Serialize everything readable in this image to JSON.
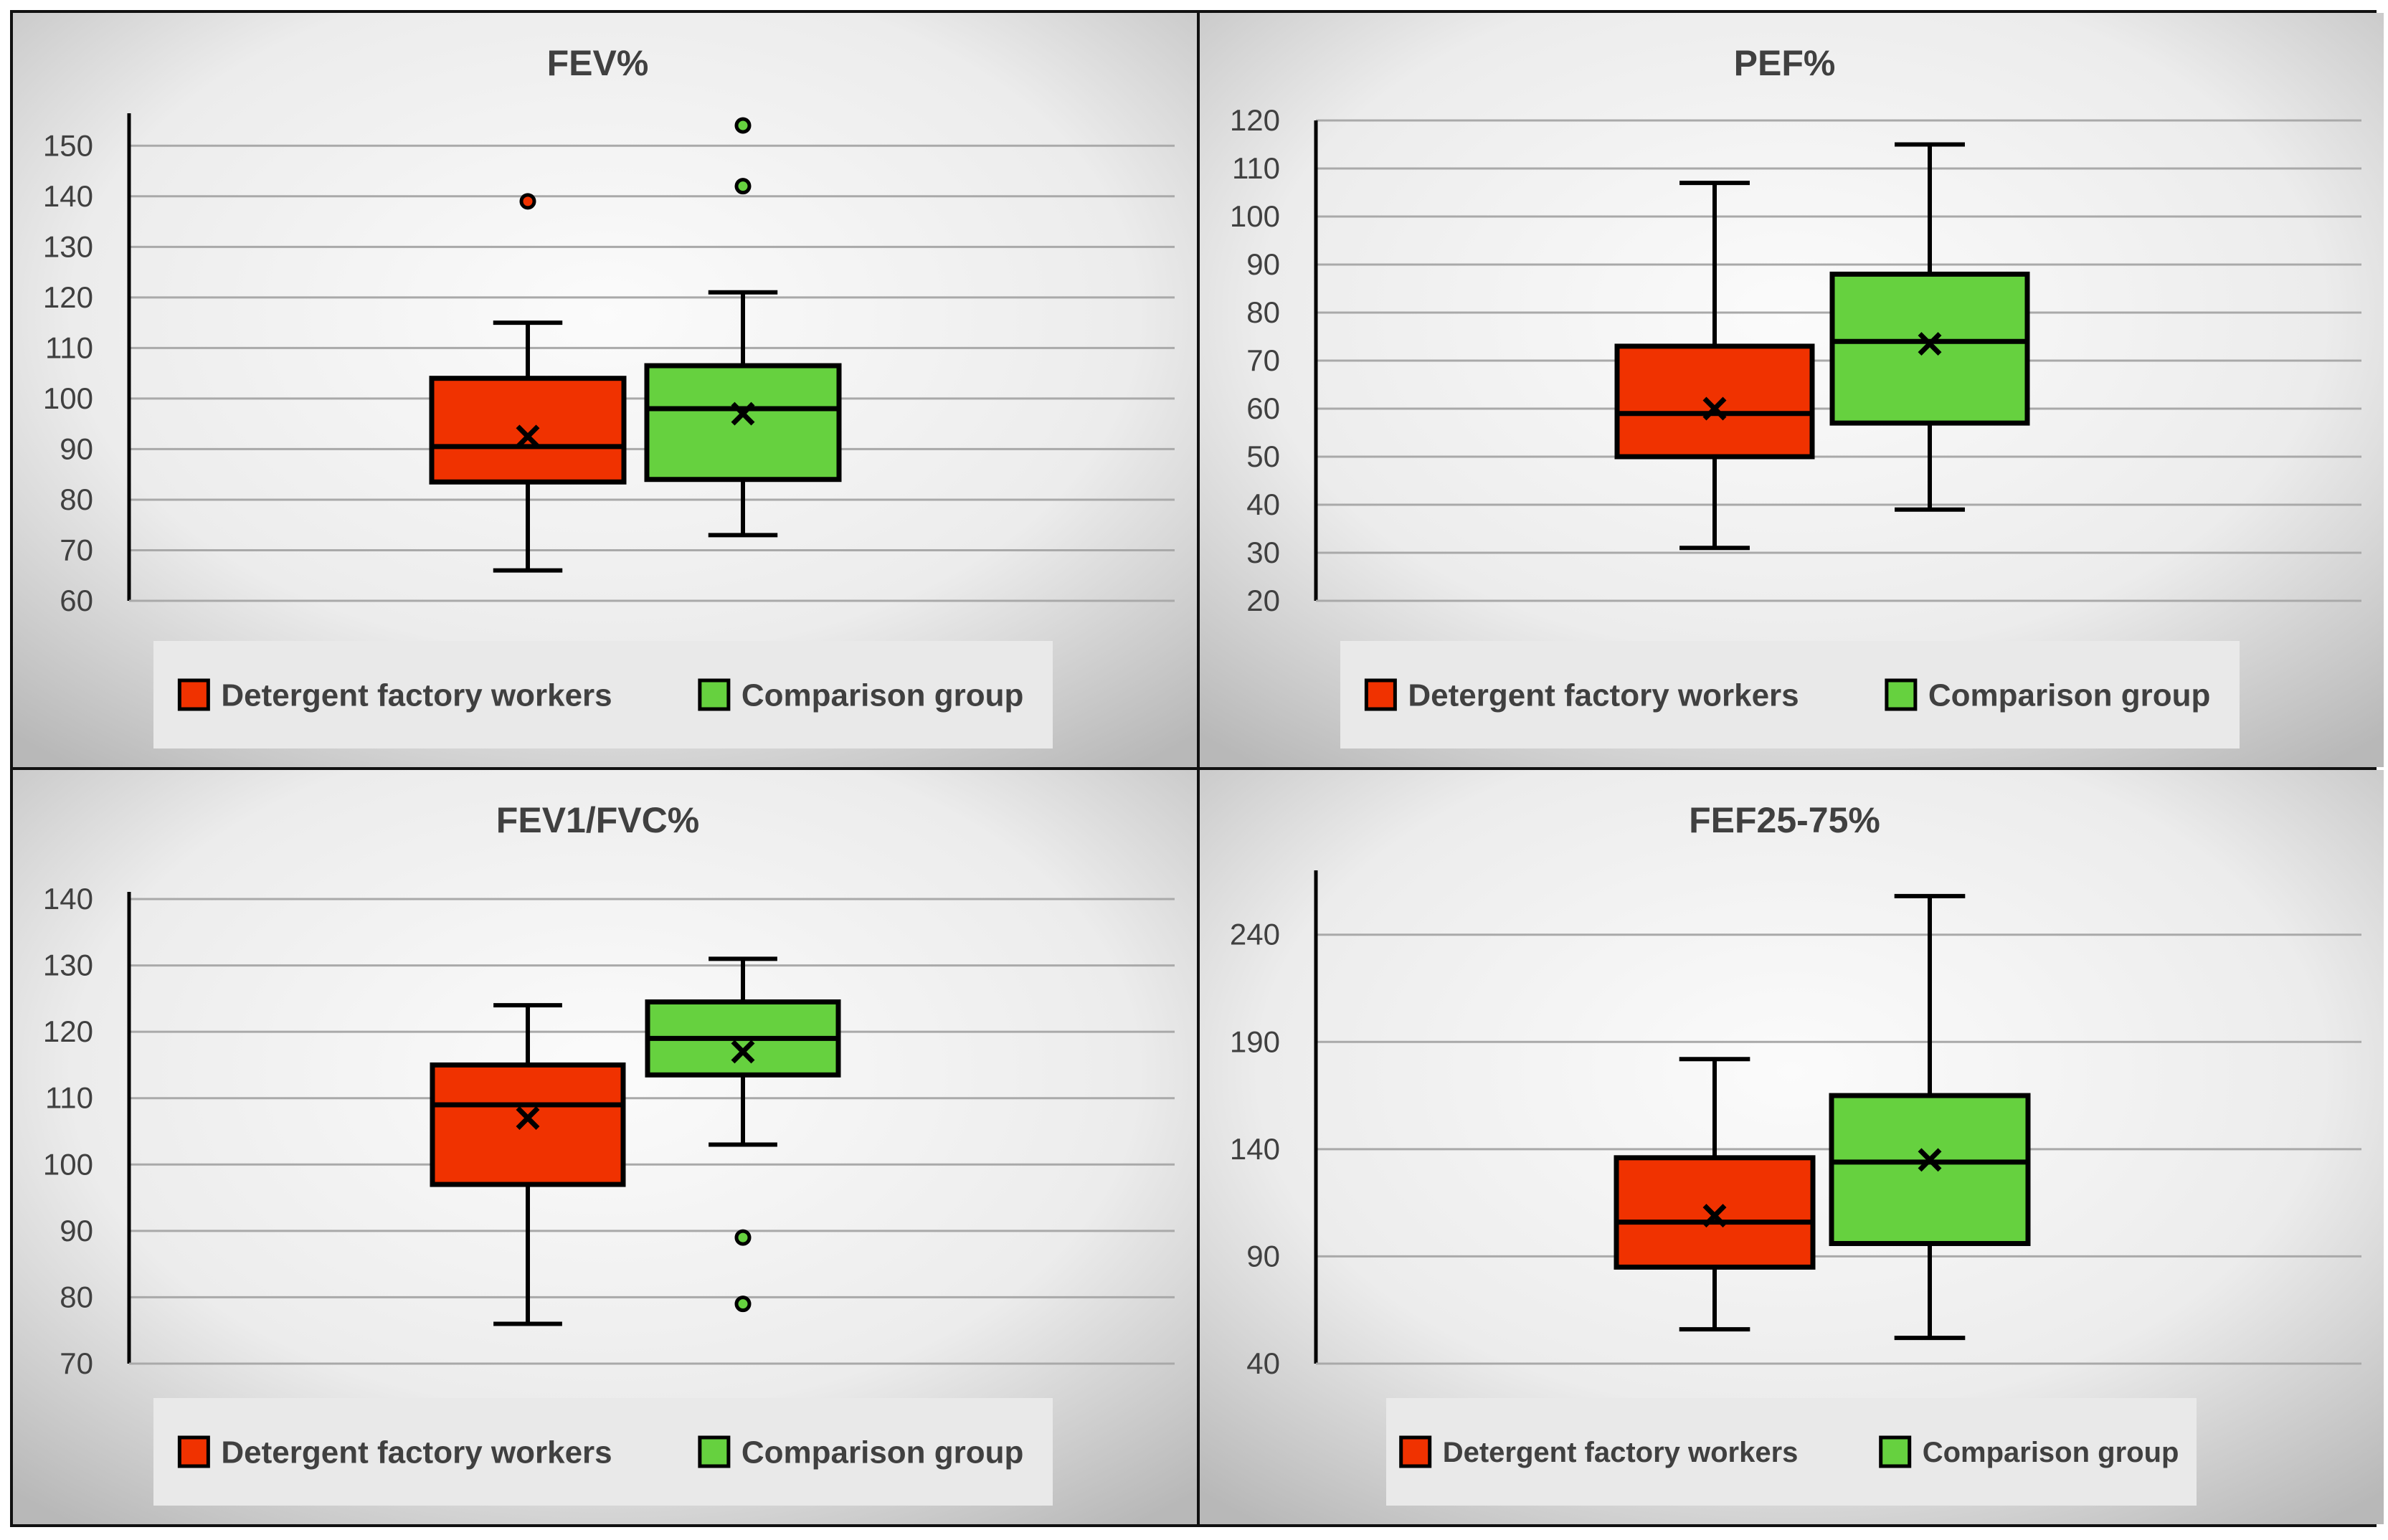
{
  "colors": {
    "workers": "#f03200",
    "comparison": "#66d13f",
    "axis": "#000000",
    "grid": "#a9a9a9",
    "legend_bg": "#e9e9e9",
    "panel_edge": "#b8b8b8",
    "panel_center": "#fbfbfb"
  },
  "legend": {
    "workers_label": "Detergent factory workers",
    "comparison_label": "Comparison group"
  },
  "chart_data": [
    {
      "type": "boxplot",
      "title": "FEV%",
      "xlabel": "",
      "ylabel": "",
      "ylim": [
        60,
        155
      ],
      "yticks": [
        "60",
        "70",
        "80",
        "90",
        "100",
        "110",
        "120",
        "130",
        "140",
        "150"
      ],
      "grid": true,
      "legend": "bottom",
      "series": [
        {
          "name": "Detergent factory workers",
          "min": 66,
          "q1": 83.5,
          "median": 90.5,
          "q3": 104,
          "max": 115,
          "mean": 92.5,
          "outliers": [
            139
          ]
        },
        {
          "name": "Comparison group",
          "min": 73,
          "q1": 84,
          "median": 98,
          "q3": 106.5,
          "max": 121,
          "mean": 97,
          "outliers": [
            154,
            142
          ]
        }
      ]
    },
    {
      "type": "boxplot",
      "title": "PEF%",
      "xlabel": "",
      "ylabel": "",
      "ylim": [
        20,
        120
      ],
      "yticks": [
        "20",
        "30",
        "40",
        "50",
        "60",
        "70",
        "80",
        "90",
        "100",
        "110",
        "120"
      ],
      "grid": true,
      "legend": "bottom",
      "series": [
        {
          "name": "Detergent factory workers",
          "min": 31,
          "q1": 50,
          "median": 59,
          "q3": 73,
          "max": 107,
          "mean": 60,
          "outliers": []
        },
        {
          "name": "Comparison group",
          "min": 39,
          "q1": 57,
          "median": 74,
          "q3": 88,
          "max": 115,
          "mean": 73.5,
          "outliers": []
        }
      ]
    },
    {
      "type": "boxplot",
      "title": "FEV1/FVC%",
      "xlabel": "",
      "ylabel": "",
      "ylim": [
        70,
        140
      ],
      "yticks": [
        "70",
        "80",
        "90",
        "100",
        "110",
        "120",
        "130",
        "140"
      ],
      "grid": true,
      "legend": "bottom",
      "series": [
        {
          "name": "Detergent factory workers",
          "min": 76,
          "q1": 97,
          "median": 109,
          "q3": 115,
          "max": 124,
          "mean": 107,
          "outliers": []
        },
        {
          "name": "Comparison group",
          "min": 103,
          "q1": 113.5,
          "median": 119,
          "q3": 124.5,
          "max": 131,
          "mean": 117,
          "outliers": [
            89,
            79
          ]
        }
      ]
    },
    {
      "type": "boxplot",
      "title": "FEF25-75%",
      "xlabel": "",
      "ylabel": "",
      "ylim": [
        40,
        270
      ],
      "yticks": [
        "40",
        "90",
        "140",
        "190",
        "240"
      ],
      "grid": true,
      "legend": "bottom",
      "series": [
        {
          "name": "Detergent factory workers",
          "min": 56,
          "q1": 85,
          "median": 106,
          "q3": 136,
          "max": 182,
          "mean": 109,
          "outliers": []
        },
        {
          "name": "Comparison group",
          "min": 52,
          "q1": 96,
          "median": 134,
          "q3": 165,
          "max": 258,
          "mean": 135,
          "outliers": []
        }
      ]
    }
  ]
}
